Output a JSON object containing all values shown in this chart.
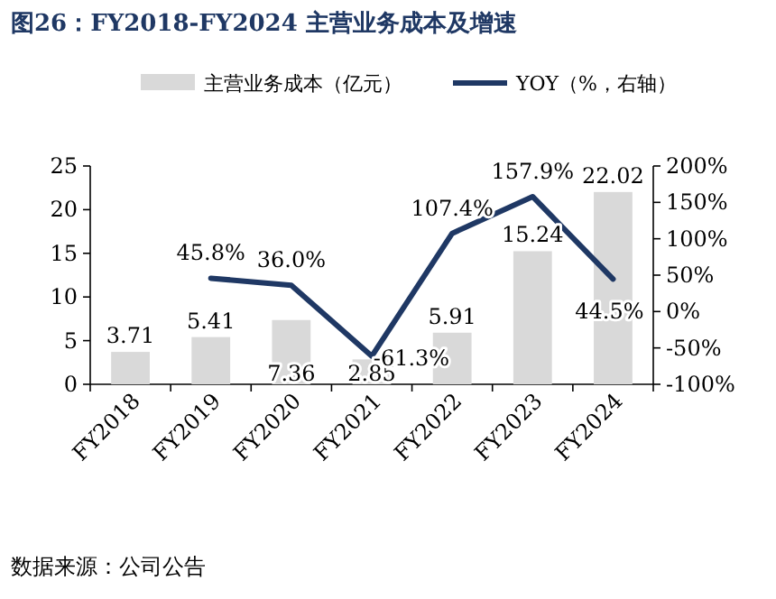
{
  "chart_data": {
    "type": "bar",
    "title": "图26：FY2018-FY2024 主营业务成本及增速",
    "categories": [
      "FY2018",
      "FY2019",
      "FY2020",
      "FY2021",
      "FY2022",
      "FY2023",
      "FY2024"
    ],
    "series": [
      {
        "name": "主营业务成本（亿元）",
        "color": "#d9d9d9",
        "values": [
          3.71,
          5.41,
          7.36,
          2.85,
          5.91,
          15.24,
          22.02
        ],
        "value_labels": [
          "3.71",
          "5.41",
          "7.36",
          "2.85",
          "5.91",
          "15.24",
          "22.02"
        ]
      },
      {
        "name": "YOY（%，右轴）",
        "type": "line",
        "axis": "y2",
        "color": "#1f3864",
        "values": [
          null,
          45.8,
          36.0,
          -61.3,
          107.4,
          157.9,
          44.5
        ],
        "value_labels": [
          null,
          "45.8%",
          "36.0%",
          "-61.3%",
          "107.4%",
          "157.9%",
          "44.5%"
        ]
      }
    ],
    "ylim": [
      0,
      25
    ],
    "yticks": [
      0,
      5,
      10,
      15,
      20,
      25
    ],
    "y2lim": [
      -100,
      200
    ],
    "y2ticks": [
      {
        "value": -100,
        "label": "-100%"
      },
      {
        "value": -50,
        "label": "-50%"
      },
      {
        "value": 0,
        "label": "0%"
      },
      {
        "value": 50,
        "label": "50%"
      },
      {
        "value": 100,
        "label": "100%"
      },
      {
        "value": 150,
        "label": "150%"
      },
      {
        "value": 200,
        "label": "200%"
      }
    ],
    "legend": "top",
    "grid": false,
    "marker": "none",
    "annotations": [
      "数据来源：公司公告"
    ]
  }
}
